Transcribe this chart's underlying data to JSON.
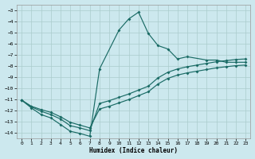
{
  "xlabel": "Humidex (Indice chaleur)",
  "xlim": [
    -0.5,
    23.5
  ],
  "ylim": [
    -14.5,
    -2.5
  ],
  "xticks": [
    0,
    1,
    2,
    3,
    4,
    5,
    6,
    7,
    8,
    9,
    10,
    11,
    12,
    13,
    14,
    15,
    16,
    17,
    18,
    19,
    20,
    21,
    22,
    23
  ],
  "yticks": [
    -3,
    -4,
    -5,
    -6,
    -7,
    -8,
    -9,
    -10,
    -11,
    -12,
    -13,
    -14
  ],
  "bg_color": "#cce8ee",
  "grid_color": "#aacccc",
  "line_color": "#1a6b65",
  "line1_x": [
    0,
    1,
    2,
    3,
    4,
    5,
    6,
    7,
    8,
    10,
    11,
    12,
    13,
    14,
    15,
    16,
    17,
    19,
    20,
    21,
    22,
    23
  ],
  "line1_y": [
    -11.1,
    -11.8,
    -12.4,
    -12.7,
    -13.3,
    -13.9,
    -14.1,
    -14.35,
    -8.3,
    -4.8,
    -3.8,
    -3.2,
    -5.1,
    -6.2,
    -6.5,
    -7.4,
    -7.2,
    -7.5,
    -7.5,
    -7.7,
    -7.7,
    -7.7
  ],
  "line2_x": [
    0,
    1,
    2,
    3,
    4,
    5,
    6,
    7,
    8,
    9,
    10,
    11,
    12,
    13,
    14,
    15,
    16,
    17,
    18,
    19,
    20,
    21,
    22,
    23
  ],
  "line2_y": [
    -11.1,
    -11.7,
    -12.1,
    -12.4,
    -12.8,
    -13.4,
    -13.6,
    -13.85,
    -11.4,
    -11.15,
    -10.85,
    -10.55,
    -10.2,
    -9.85,
    -9.1,
    -8.6,
    -8.3,
    -8.1,
    -7.95,
    -7.8,
    -7.65,
    -7.55,
    -7.45,
    -7.4
  ],
  "line3_x": [
    0,
    1,
    2,
    3,
    4,
    5,
    6,
    7,
    8,
    9,
    10,
    11,
    12,
    13,
    14,
    15,
    16,
    17,
    18,
    19,
    20,
    21,
    22,
    23
  ],
  "line3_y": [
    -11.1,
    -11.65,
    -11.95,
    -12.2,
    -12.6,
    -13.1,
    -13.35,
    -13.6,
    -11.9,
    -11.65,
    -11.35,
    -11.05,
    -10.7,
    -10.35,
    -9.65,
    -9.15,
    -8.85,
    -8.65,
    -8.5,
    -8.35,
    -8.2,
    -8.1,
    -8.0,
    -7.95
  ]
}
